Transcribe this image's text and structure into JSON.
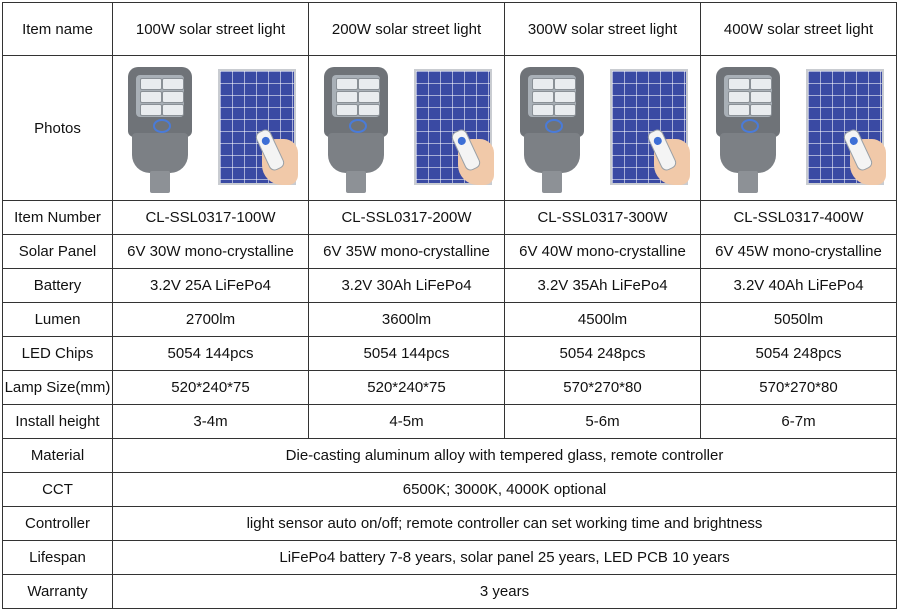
{
  "header": {
    "item_name": "Item name",
    "models": [
      "100W solar street light",
      "200W  solar street light",
      "300W  solar street light",
      "400W  solar street light"
    ]
  },
  "photos_label": "Photos",
  "rows": [
    {
      "label": "Item Number",
      "values": [
        "CL-SSL0317-100W",
        "CL-SSL0317-200W",
        "CL-SSL0317-300W",
        "CL-SSL0317-400W"
      ]
    },
    {
      "label": "Solar Panel",
      "values": [
        "6V 30W mono-crystalline",
        "6V 35W mono-crystalline",
        "6V 40W mono-crystalline",
        "6V 45W mono-crystalline"
      ]
    },
    {
      "label": "Battery",
      "values": [
        "3.2V 25A LiFePo4",
        "3.2V 30Ah LiFePo4",
        "3.2V 35Ah LiFePo4",
        "3.2V 40Ah LiFePo4"
      ]
    },
    {
      "label": "Lumen",
      "values": [
        "2700lm",
        "3600lm",
        "4500lm",
        "5050lm"
      ]
    },
    {
      "label": "LED Chips",
      "values": [
        "5054 144pcs",
        "5054 144pcs",
        "5054 248pcs",
        "5054 248pcs"
      ]
    },
    {
      "label": "Lamp Size(mm)",
      "values": [
        "520*240*75",
        "520*240*75",
        "570*270*80",
        "570*270*80"
      ]
    },
    {
      "label": "Install height",
      "values": [
        "3-4m",
        "4-5m",
        "5-6m",
        "6-7m"
      ]
    }
  ],
  "merged_rows": [
    {
      "label": "Material",
      "value": "Die-casting aluminum alloy with tempered glass, remote controller"
    },
    {
      "label": "CCT",
      "value": "6500K; 3000K, 4000K optional"
    },
    {
      "label": "Controller",
      "value": "light sensor auto on/off; remote controller can set working time and brightness"
    },
    {
      "label": "Lifespan",
      "value": "LiFePo4 battery 7-8 years, solar panel 25 years, LED PCB 10 years"
    },
    {
      "label": "Warranty",
      "value": "3 years"
    }
  ],
  "photo_icons": [
    "street-lamp-icon",
    "solar-panel-icon",
    "remote-control-icon"
  ],
  "colors": {
    "border": "#333333",
    "panel_blue": "#3a4aa3",
    "lamp_gray": "#6f7378"
  }
}
